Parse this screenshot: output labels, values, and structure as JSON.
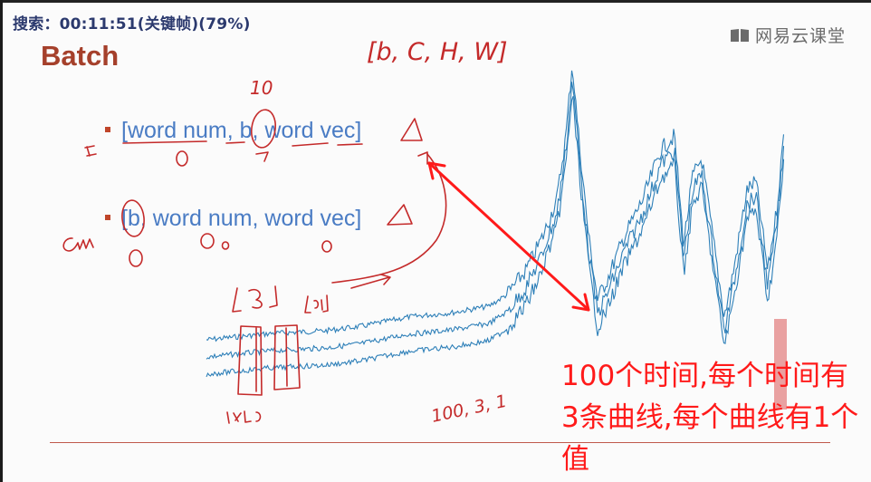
{
  "overlay": {
    "search_status": "搜索：00:11:51(关键帧)(79%)"
  },
  "brand": {
    "name": "网易云课堂",
    "icon": "book-icon"
  },
  "slide": {
    "title": "Batch",
    "bullets": [
      {
        "text": "[word num, b, word vec]"
      },
      {
        "text": "[b, word num, word vec]"
      }
    ],
    "note": "100个时间,每个时间有3条曲线,每个曲线有1个值"
  },
  "handwriting": {
    "top_shape": "[b, C, H, W]",
    "ten": "10",
    "bottom_dims": "100, 3, 1"
  },
  "colors": {
    "title": "#a5402b",
    "bullet_text": "#4a7cc4",
    "curve": "#2d7fb8",
    "annotation": "#c42a2a",
    "note": "#ff1a1a"
  }
}
